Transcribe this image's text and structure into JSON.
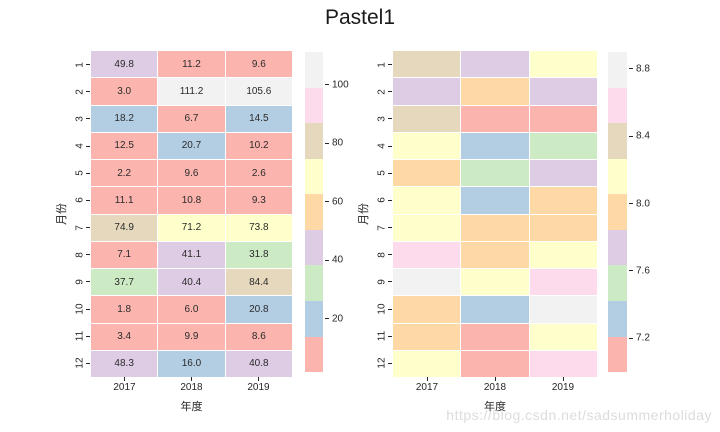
{
  "title": "Pastel1",
  "watermark": "https://blog.csdn.net/sadsummerholiday",
  "palette": {
    "names": [
      "salmon",
      "blue",
      "green",
      "purple",
      "orange",
      "yellow",
      "tan",
      "pink",
      "gray"
    ],
    "colors": [
      "#fbb4ae",
      "#b3cde3",
      "#ccebc5",
      "#decbe4",
      "#fed9a6",
      "#ffffcc",
      "#e5d8bd",
      "#fddaec",
      "#f2f2f2"
    ]
  },
  "chart_data": [
    {
      "type": "heatmap",
      "annotated": true,
      "xlabel": "年度",
      "ylabel": "月份",
      "columns": [
        "2017",
        "2018",
        "2019"
      ],
      "rows": [
        "1",
        "2",
        "3",
        "4",
        "5",
        "6",
        "7",
        "8",
        "9",
        "10",
        "11",
        "12"
      ],
      "values": [
        [
          49.8,
          11.2,
          9.6
        ],
        [
          3.0,
          111.2,
          105.6
        ],
        [
          18.2,
          6.7,
          14.5
        ],
        [
          12.5,
          20.7,
          10.2
        ],
        [
          2.2,
          9.6,
          2.6
        ],
        [
          11.1,
          10.8,
          9.3
        ],
        [
          74.9,
          71.2,
          73.8
        ],
        [
          7.1,
          41.1,
          31.8
        ],
        [
          37.7,
          40.4,
          84.4
        ],
        [
          1.8,
          6.0,
          20.8
        ],
        [
          3.4,
          9.9,
          8.6
        ],
        [
          48.3,
          16.0,
          40.8
        ]
      ],
      "vmin": 1.8,
      "vmax": 111.2,
      "colorbar_ticks": [
        "20",
        "40",
        "60",
        "80",
        "100"
      ],
      "grid": false,
      "legend": "colorbar-right"
    },
    {
      "type": "heatmap",
      "annotated": false,
      "xlabel": "年度",
      "ylabel": "月份",
      "columns": [
        "2017",
        "2018",
        "2019"
      ],
      "rows": [
        "1",
        "2",
        "3",
        "4",
        "5",
        "6",
        "7",
        "8",
        "9",
        "10",
        "11",
        "12"
      ],
      "cell_colors": [
        [
          "tan",
          "purple",
          "yellow"
        ],
        [
          "purple",
          "orange",
          "purple"
        ],
        [
          "tan",
          "salmon",
          "salmon"
        ],
        [
          "yellow",
          "blue",
          "green"
        ],
        [
          "orange",
          "green",
          "purple"
        ],
        [
          "yellow",
          "blue",
          "orange"
        ],
        [
          "yellow",
          "orange",
          "orange"
        ],
        [
          "pink",
          "orange",
          "yellow"
        ],
        [
          "gray",
          "yellow",
          "pink"
        ],
        [
          "orange",
          "blue",
          "gray"
        ],
        [
          "orange",
          "salmon",
          "yellow"
        ],
        [
          "yellow",
          "salmon",
          "pink"
        ]
      ],
      "vmin": 7.0,
      "vmax": 8.9,
      "colorbar_ticks": [
        "7.2",
        "7.6",
        "8.0",
        "8.4",
        "8.8"
      ],
      "grid": false,
      "legend": "colorbar-right"
    }
  ]
}
